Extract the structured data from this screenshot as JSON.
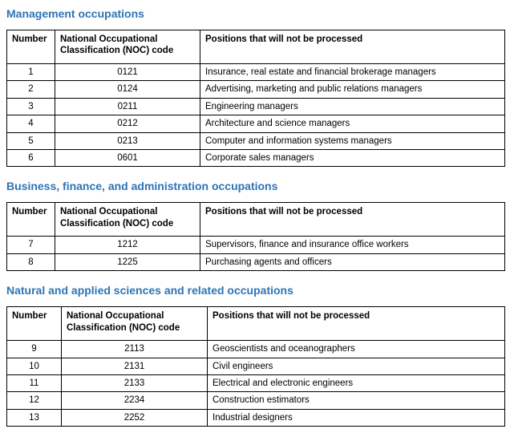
{
  "accent_color": "#2E74B5",
  "columns": {
    "number": "Number",
    "noc_code": "National Occupational Classification (NOC) code",
    "positions": "Positions that will not be processed"
  },
  "sections": [
    {
      "heading": "Management occupations",
      "rows": [
        {
          "number": "1",
          "code": "0121",
          "position": "Insurance, real estate and financial brokerage managers"
        },
        {
          "number": "2",
          "code": "0124",
          "position": "Advertising, marketing and public relations managers"
        },
        {
          "number": "3",
          "code": "0211",
          "position": "Engineering managers"
        },
        {
          "number": "4",
          "code": "0212",
          "position": "Architecture and science managers"
        },
        {
          "number": "5",
          "code": "0213",
          "position": "Computer and information systems managers"
        },
        {
          "number": "6",
          "code": "0601",
          "position": "Corporate sales managers"
        }
      ]
    },
    {
      "heading": "Business, finance, and administration occupations",
      "rows": [
        {
          "number": "7",
          "code": "1212",
          "position": "Supervisors, finance and insurance office workers"
        },
        {
          "number": "8",
          "code": "1225",
          "position": "Purchasing agents and officers"
        }
      ]
    },
    {
      "heading": "Natural and applied sciences and related occupations",
      "rows": [
        {
          "number": "9",
          "code": "2113",
          "position": "Geoscientists and oceanographers"
        },
        {
          "number": "10",
          "code": "2131",
          "position": "Civil engineers"
        },
        {
          "number": "11",
          "code": "2133",
          "position": "Electrical and electronic engineers"
        },
        {
          "number": "12",
          "code": "2234",
          "position": "Construction estimators"
        },
        {
          "number": "13",
          "code": "2252",
          "position": "Industrial designers"
        }
      ]
    }
  ]
}
